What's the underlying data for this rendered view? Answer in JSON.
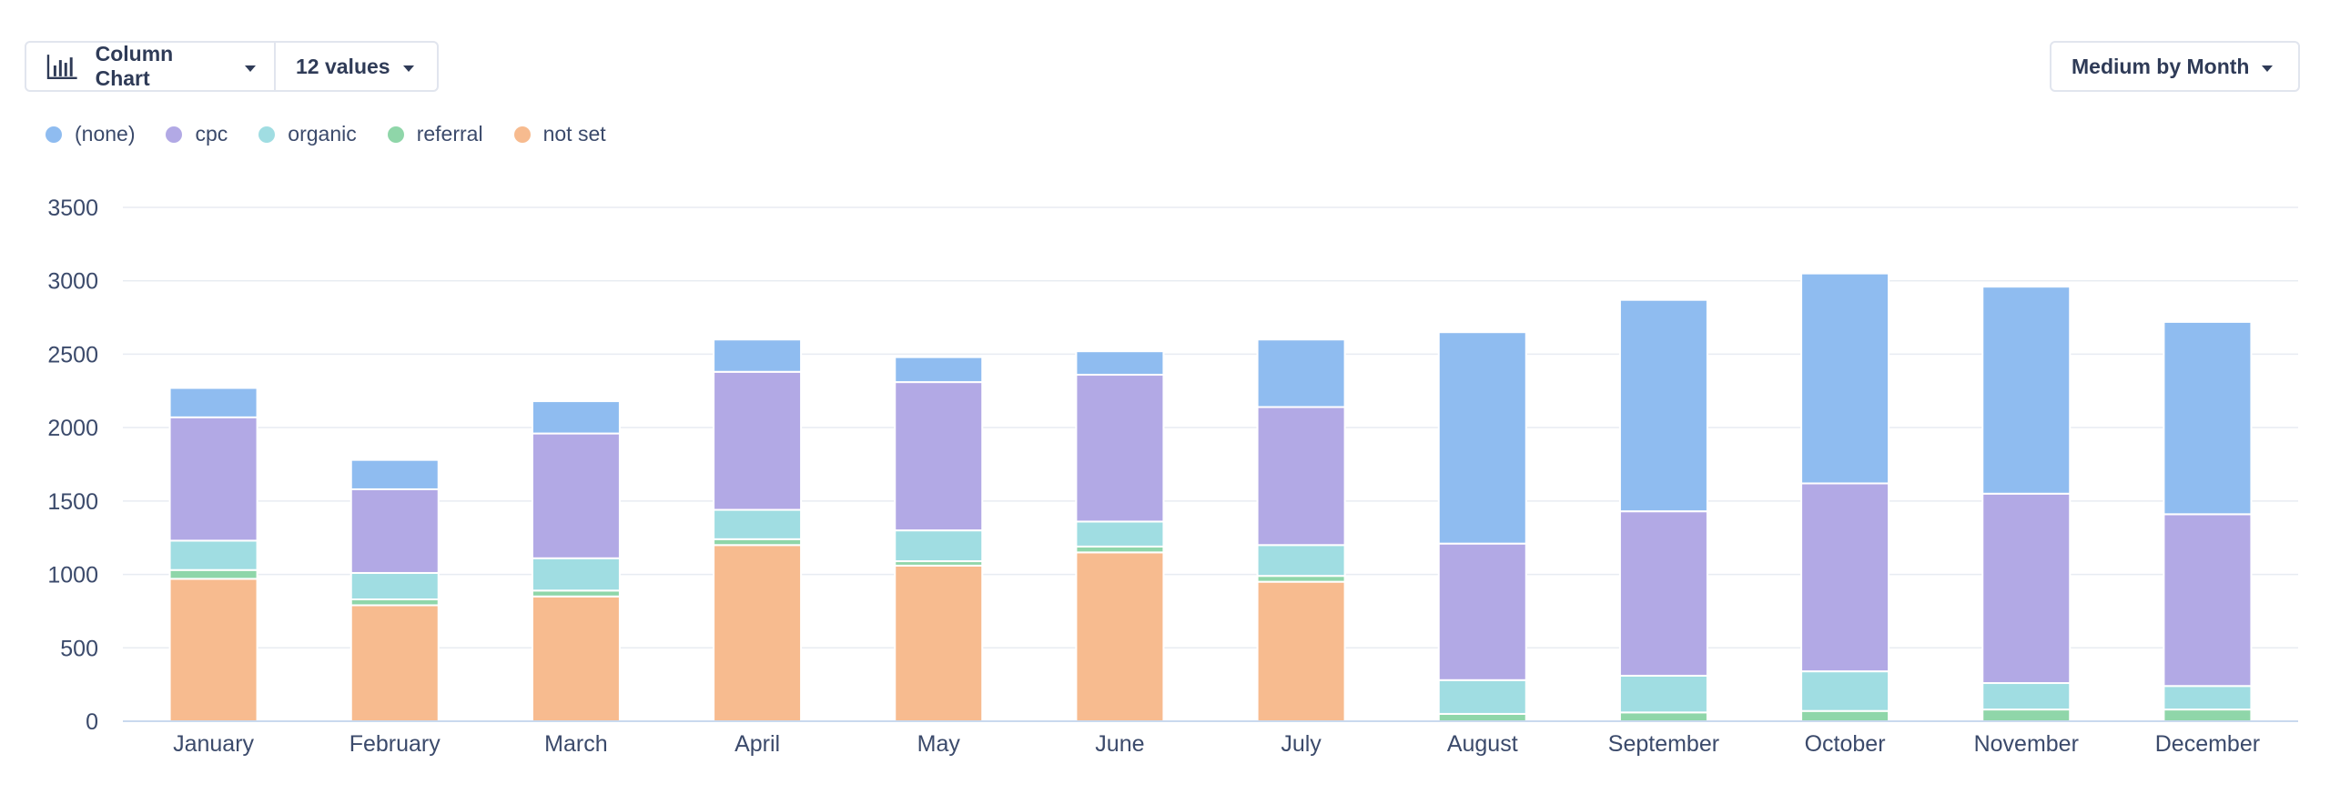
{
  "toolbar": {
    "chart_type_label": "Column Chart",
    "values_label": "12 values",
    "grouping_label": "Medium by Month"
  },
  "icons": {
    "chart_type": "bar-chart-icon",
    "dropdown": "chevron-down-icon"
  },
  "chart_data": {
    "type": "bar",
    "stacked": true,
    "categories": [
      "January",
      "February",
      "March",
      "April",
      "May",
      "June",
      "July",
      "August",
      "September",
      "October",
      "November",
      "December"
    ],
    "series": [
      {
        "name": "not set",
        "color": "#f7bb8f",
        "values": [
          970,
          790,
          850,
          1200,
          1060,
          1150,
          950,
          0,
          0,
          0,
          0,
          0
        ]
      },
      {
        "name": "referral",
        "color": "#8fd6a9",
        "values": [
          60,
          40,
          40,
          40,
          30,
          40,
          40,
          50,
          60,
          70,
          80,
          80
        ]
      },
      {
        "name": "organic",
        "color": "#a0dde2",
        "values": [
          200,
          180,
          220,
          200,
          210,
          170,
          210,
          230,
          250,
          270,
          180,
          160
        ]
      },
      {
        "name": "cpc",
        "color": "#b2a9e5",
        "values": [
          840,
          570,
          850,
          940,
          1010,
          1000,
          940,
          930,
          1120,
          1280,
          1290,
          1170
        ]
      },
      {
        "name": "(none)",
        "color": "#8fbcf0",
        "values": [
          200,
          200,
          220,
          220,
          170,
          160,
          460,
          1440,
          1440,
          1430,
          1410,
          1310
        ]
      }
    ],
    "legend_order": [
      "(none)",
      "cpc",
      "organic",
      "referral",
      "not set"
    ],
    "ylim": [
      0,
      3500
    ],
    "yticks": [
      0,
      500,
      1000,
      1500,
      2000,
      2500,
      3000,
      3500
    ],
    "grid": true,
    "legend_position": "top-left",
    "title": "",
    "xlabel": "",
    "ylabel": ""
  }
}
